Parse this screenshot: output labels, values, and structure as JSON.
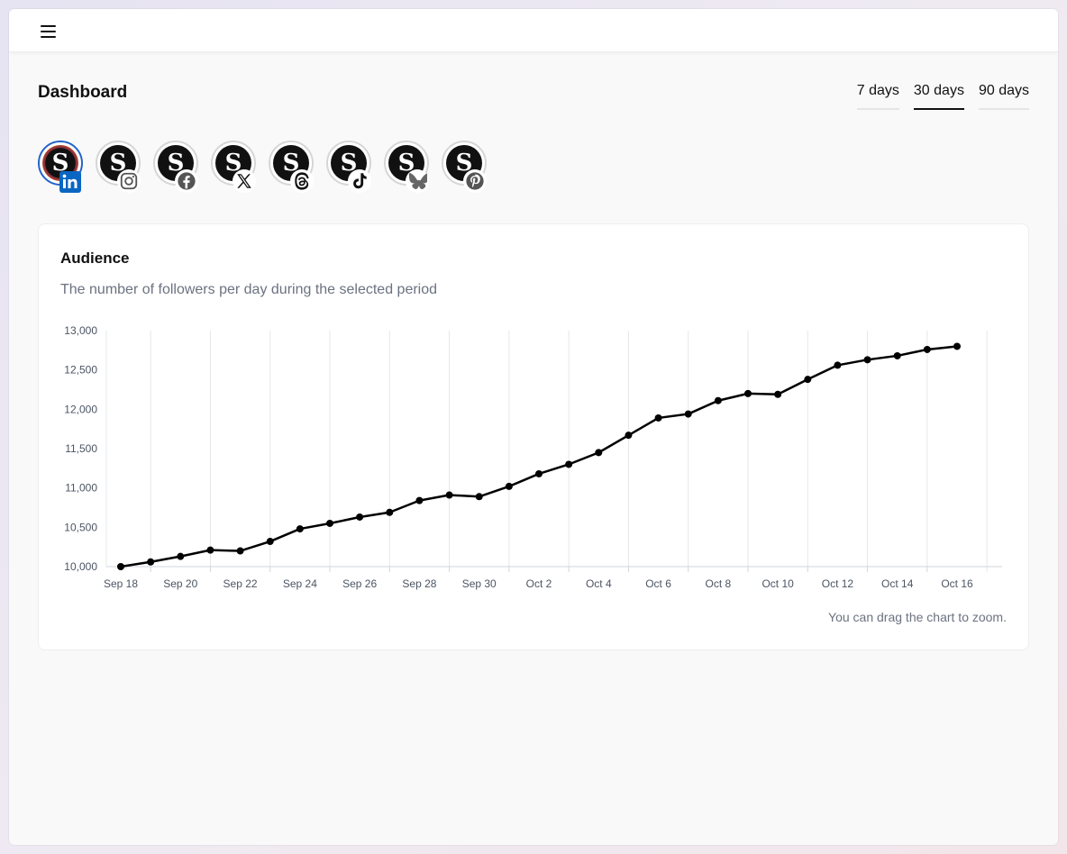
{
  "header": {
    "menu_icon": "hamburger-menu-icon"
  },
  "page": {
    "title": "Dashboard"
  },
  "tabs": [
    {
      "label": "7 days",
      "active": false
    },
    {
      "label": "30 days",
      "active": true
    },
    {
      "label": "90 days",
      "active": false
    }
  ],
  "accounts": [
    {
      "letter": "S",
      "network": "linkedin",
      "icon": "linkedin-icon",
      "selected": true
    },
    {
      "letter": "S",
      "network": "instagram",
      "icon": "instagram-icon",
      "selected": false
    },
    {
      "letter": "S",
      "network": "facebook",
      "icon": "facebook-icon",
      "selected": false
    },
    {
      "letter": "S",
      "network": "x",
      "icon": "x-icon",
      "selected": false
    },
    {
      "letter": "S",
      "network": "threads",
      "icon": "threads-icon",
      "selected": false
    },
    {
      "letter": "S",
      "network": "tiktok",
      "icon": "tiktok-icon",
      "selected": false
    },
    {
      "letter": "S",
      "network": "bluesky",
      "icon": "bluesky-icon",
      "selected": false
    },
    {
      "letter": "S",
      "network": "pinterest",
      "icon": "pinterest-icon",
      "selected": false
    }
  ],
  "card": {
    "title": "Audience",
    "subtitle": "The number of followers per day during the selected period",
    "hint": "You can drag the chart to zoom."
  },
  "colors": {
    "line": "#000000",
    "grid": "#e5e7eb",
    "axis_text": "#4b5563",
    "selected_ring": "#2563c9"
  },
  "chart_data": {
    "type": "line",
    "x": [
      "Sep 18",
      "Sep 19",
      "Sep 20",
      "Sep 21",
      "Sep 22",
      "Sep 23",
      "Sep 24",
      "Sep 25",
      "Sep 26",
      "Sep 27",
      "Sep 28",
      "Sep 29",
      "Sep 30",
      "Oct 1",
      "Oct 2",
      "Oct 3",
      "Oct 4",
      "Oct 5",
      "Oct 6",
      "Oct 7",
      "Oct 8",
      "Oct 9",
      "Oct 10",
      "Oct 11",
      "Oct 12",
      "Oct 13",
      "Oct 14",
      "Oct 15",
      "Oct 16"
    ],
    "x_tick_labels": [
      "Sep 18",
      "Sep 20",
      "Sep 22",
      "Sep 24",
      "Sep 26",
      "Sep 28",
      "Sep 30",
      "Oct 2",
      "Oct 4",
      "Oct 6",
      "Oct 8",
      "Oct 10",
      "Oct 12",
      "Oct 14",
      "Oct 16"
    ],
    "series": [
      {
        "values": [
          10000,
          10060,
          10130,
          10210,
          10200,
          10320,
          10480,
          10550,
          10630,
          10690,
          10840,
          10910,
          10890,
          11020,
          11180,
          11300,
          11450,
          11670,
          11890,
          11940,
          12110,
          12200,
          12190,
          12380,
          12560,
          12630,
          12680,
          12760,
          12800
        ]
      }
    ],
    "y_ticks": [
      "10,000",
      "10,500",
      "11,000",
      "11,500",
      "12,000",
      "12,500",
      "13,000"
    ],
    "ylim": [
      10000,
      13000
    ],
    "grid": true,
    "legend": false
  }
}
